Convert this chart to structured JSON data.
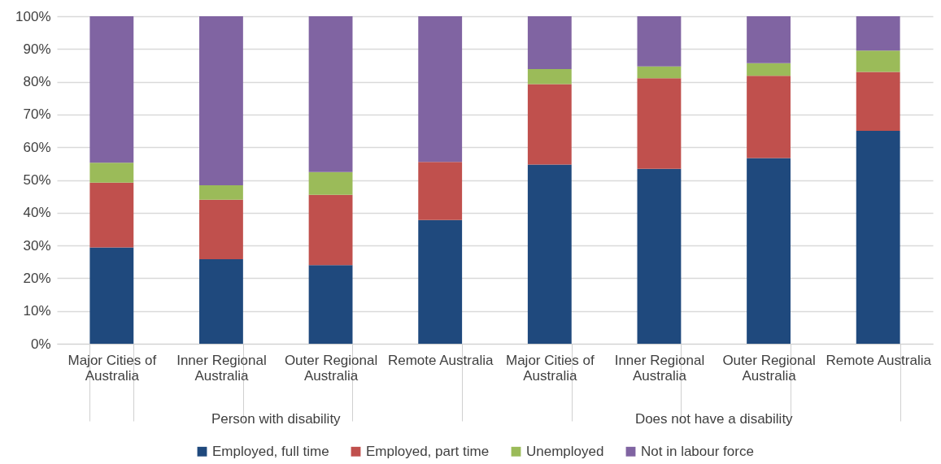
{
  "chart_data": {
    "type": "bar",
    "stacked": true,
    "categories": [
      "Major Cities of Australia",
      "Inner Regional Australia",
      "Outer Regional Australia",
      "Remote Australia",
      "Major Cities of Australia",
      "Inner Regional Australia",
      "Outer Regional Australia",
      "Remote Australia"
    ],
    "series": [
      {
        "name": "Employed, full time",
        "color": "#1f497d",
        "values": [
          29.4,
          25.8,
          24.0,
          37.8,
          54.7,
          53.4,
          56.7,
          65.0
        ]
      },
      {
        "name": "Employed, part time",
        "color": "#c0504d",
        "values": [
          19.8,
          18.2,
          21.5,
          17.7,
          24.6,
          27.7,
          25.1,
          18.0
        ]
      },
      {
        "name": "Unemployed",
        "color": "#9bbb59",
        "values": [
          6.1,
          4.4,
          6.9,
          0,
          4.6,
          3.6,
          3.9,
          6.5
        ]
      },
      {
        "name": "Not in labour force",
        "color": "#8064a2",
        "values": [
          44.7,
          51.6,
          47.6,
          44.5,
          16.1,
          15.3,
          14.3,
          10.5
        ]
      }
    ],
    "ylim": [
      0,
      100
    ],
    "yticks": [
      {
        "value": 0,
        "label": "0%"
      },
      {
        "value": 10,
        "label": "10%"
      },
      {
        "value": 20,
        "label": "20%"
      },
      {
        "value": 30,
        "label": "30%"
      },
      {
        "value": 40,
        "label": "40%"
      },
      {
        "value": 50,
        "label": "50%"
      },
      {
        "value": 60,
        "label": "60%"
      },
      {
        "value": 70,
        "label": "70%"
      },
      {
        "value": 80,
        "label": "80%"
      },
      {
        "value": 90,
        "label": "90%"
      },
      {
        "value": 100,
        "label": "100%"
      }
    ],
    "grid": "y",
    "legend": "bottom",
    "annotations": [
      "Person with disability",
      "Does not have a disability"
    ]
  }
}
